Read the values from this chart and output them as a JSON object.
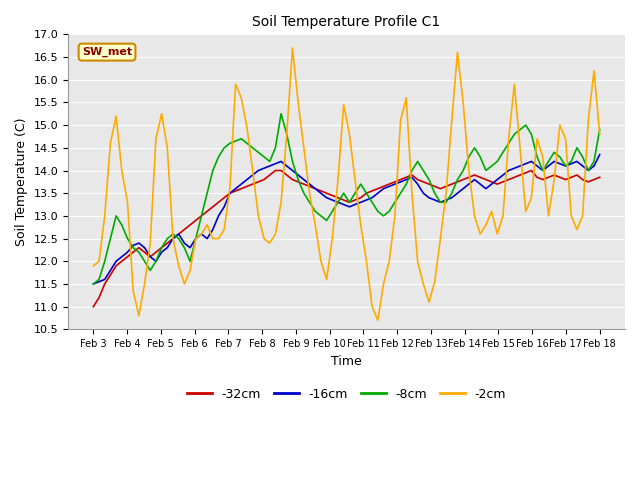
{
  "title": "Soil Temperature Profile C1",
  "xlabel": "Time",
  "ylabel": "Soil Temperature (C)",
  "ylim": [
    10.5,
    17.0
  ],
  "yticks": [
    10.5,
    11.0,
    11.5,
    12.0,
    12.5,
    13.0,
    13.5,
    14.0,
    14.5,
    15.0,
    15.5,
    16.0,
    16.5,
    17.0
  ],
  "xtick_labels": [
    "Feb 3",
    "Feb 4",
    "Feb 5",
    "Feb 6",
    "Feb 7",
    "Feb 8",
    "Feb 9",
    "Feb 10",
    "Feb 11",
    "Feb 12",
    "Feb 13",
    "Feb 14",
    "Feb 15",
    "Feb 16",
    "Feb 17",
    "Feb 18"
  ],
  "annotation": "SW_met",
  "colors": {
    "-32cm": "#cc0000",
    "-16cm": "#0000cc",
    "-8cm": "#00aa00",
    "-2cm": "#ffaa00"
  },
  "legend_labels": [
    "-32cm",
    "-16cm",
    "-8cm",
    "-2cm"
  ],
  "fig_bg_color": "#ffffff",
  "plot_bg_color": "#e8e8e8",
  "series": {
    "-32cm": [
      11.0,
      11.2,
      11.5,
      11.7,
      11.9,
      12.0,
      12.1,
      12.2,
      12.3,
      12.2,
      12.1,
      12.2,
      12.3,
      12.4,
      12.5,
      12.6,
      12.7,
      12.8,
      12.9,
      13.0,
      13.1,
      13.2,
      13.3,
      13.4,
      13.5,
      13.55,
      13.6,
      13.65,
      13.7,
      13.75,
      13.8,
      13.9,
      14.0,
      14.0,
      13.9,
      13.8,
      13.75,
      13.7,
      13.65,
      13.6,
      13.55,
      13.5,
      13.45,
      13.4,
      13.35,
      13.3,
      13.35,
      13.4,
      13.5,
      13.55,
      13.6,
      13.65,
      13.7,
      13.75,
      13.8,
      13.85,
      13.9,
      13.8,
      13.75,
      13.7,
      13.65,
      13.6,
      13.65,
      13.7,
      13.75,
      13.8,
      13.85,
      13.9,
      13.85,
      13.8,
      13.75,
      13.7,
      13.75,
      13.8,
      13.85,
      13.9,
      13.95,
      14.0,
      13.85,
      13.8,
      13.85,
      13.9,
      13.85,
      13.8,
      13.85,
      13.9,
      13.8,
      13.75,
      13.8,
      13.85
    ],
    "-16cm": [
      11.5,
      11.55,
      11.6,
      11.8,
      12.0,
      12.1,
      12.2,
      12.35,
      12.4,
      12.3,
      12.1,
      12.0,
      12.2,
      12.3,
      12.5,
      12.6,
      12.4,
      12.3,
      12.5,
      12.6,
      12.5,
      12.7,
      13.0,
      13.2,
      13.5,
      13.6,
      13.7,
      13.8,
      13.9,
      14.0,
      14.05,
      14.1,
      14.15,
      14.2,
      14.1,
      14.0,
      13.9,
      13.8,
      13.7,
      13.6,
      13.5,
      13.4,
      13.35,
      13.3,
      13.25,
      13.2,
      13.25,
      13.3,
      13.35,
      13.4,
      13.5,
      13.6,
      13.65,
      13.7,
      13.75,
      13.8,
      13.85,
      13.7,
      13.5,
      13.4,
      13.35,
      13.3,
      13.35,
      13.4,
      13.5,
      13.6,
      13.7,
      13.8,
      13.7,
      13.6,
      13.7,
      13.8,
      13.9,
      14.0,
      14.05,
      14.1,
      14.15,
      14.2,
      14.1,
      14.0,
      14.1,
      14.2,
      14.15,
      14.1,
      14.15,
      14.2,
      14.1,
      14.0,
      14.1,
      14.35
    ],
    "-8cm": [
      11.5,
      11.6,
      12.0,
      12.5,
      13.0,
      12.8,
      12.5,
      12.3,
      12.2,
      12.0,
      11.8,
      12.0,
      12.3,
      12.5,
      12.6,
      12.5,
      12.3,
      12.0,
      12.5,
      13.0,
      13.5,
      14.0,
      14.3,
      14.5,
      14.6,
      14.65,
      14.7,
      14.6,
      14.5,
      14.4,
      14.3,
      14.2,
      14.5,
      15.25,
      14.8,
      14.2,
      13.8,
      13.5,
      13.3,
      13.1,
      13.0,
      12.9,
      13.1,
      13.3,
      13.5,
      13.3,
      13.5,
      13.7,
      13.5,
      13.3,
      13.1,
      13.0,
      13.1,
      13.3,
      13.5,
      13.7,
      14.0,
      14.2,
      14.0,
      13.8,
      13.5,
      13.3,
      13.3,
      13.5,
      13.8,
      14.0,
      14.3,
      14.5,
      14.3,
      14.0,
      14.1,
      14.2,
      14.4,
      14.6,
      14.8,
      14.9,
      15.0,
      14.8,
      14.3,
      14.0,
      14.2,
      14.4,
      14.3,
      14.1,
      14.2,
      14.5,
      14.3,
      14.0,
      14.2,
      14.9
    ],
    "-2cm": [
      11.9,
      12.0,
      13.0,
      14.6,
      15.2,
      14.0,
      13.3,
      11.35,
      10.8,
      11.5,
      12.4,
      14.7,
      15.25,
      14.5,
      12.5,
      11.9,
      11.5,
      11.8,
      12.5,
      12.6,
      12.8,
      12.5,
      12.5,
      12.7,
      13.6,
      15.9,
      15.6,
      14.95,
      14.0,
      13.0,
      12.5,
      12.4,
      12.6,
      13.3,
      14.8,
      16.7,
      15.5,
      14.5,
      13.5,
      12.8,
      12.0,
      11.6,
      12.5,
      13.8,
      15.45,
      14.8,
      13.8,
      12.8,
      12.0,
      11.0,
      10.7,
      11.5,
      12.0,
      13.0,
      15.1,
      15.6,
      13.5,
      12.0,
      11.5,
      11.1,
      11.55,
      12.5,
      13.5,
      15.1,
      16.6,
      15.5,
      14.0,
      13.0,
      12.6,
      12.8,
      13.1,
      12.6,
      13.0,
      14.7,
      15.9,
      14.5,
      13.1,
      13.4,
      14.7,
      14.3,
      13.0,
      13.8,
      15.0,
      14.7,
      13.0,
      12.7,
      13.0,
      15.1,
      16.2,
      14.8
    ]
  }
}
